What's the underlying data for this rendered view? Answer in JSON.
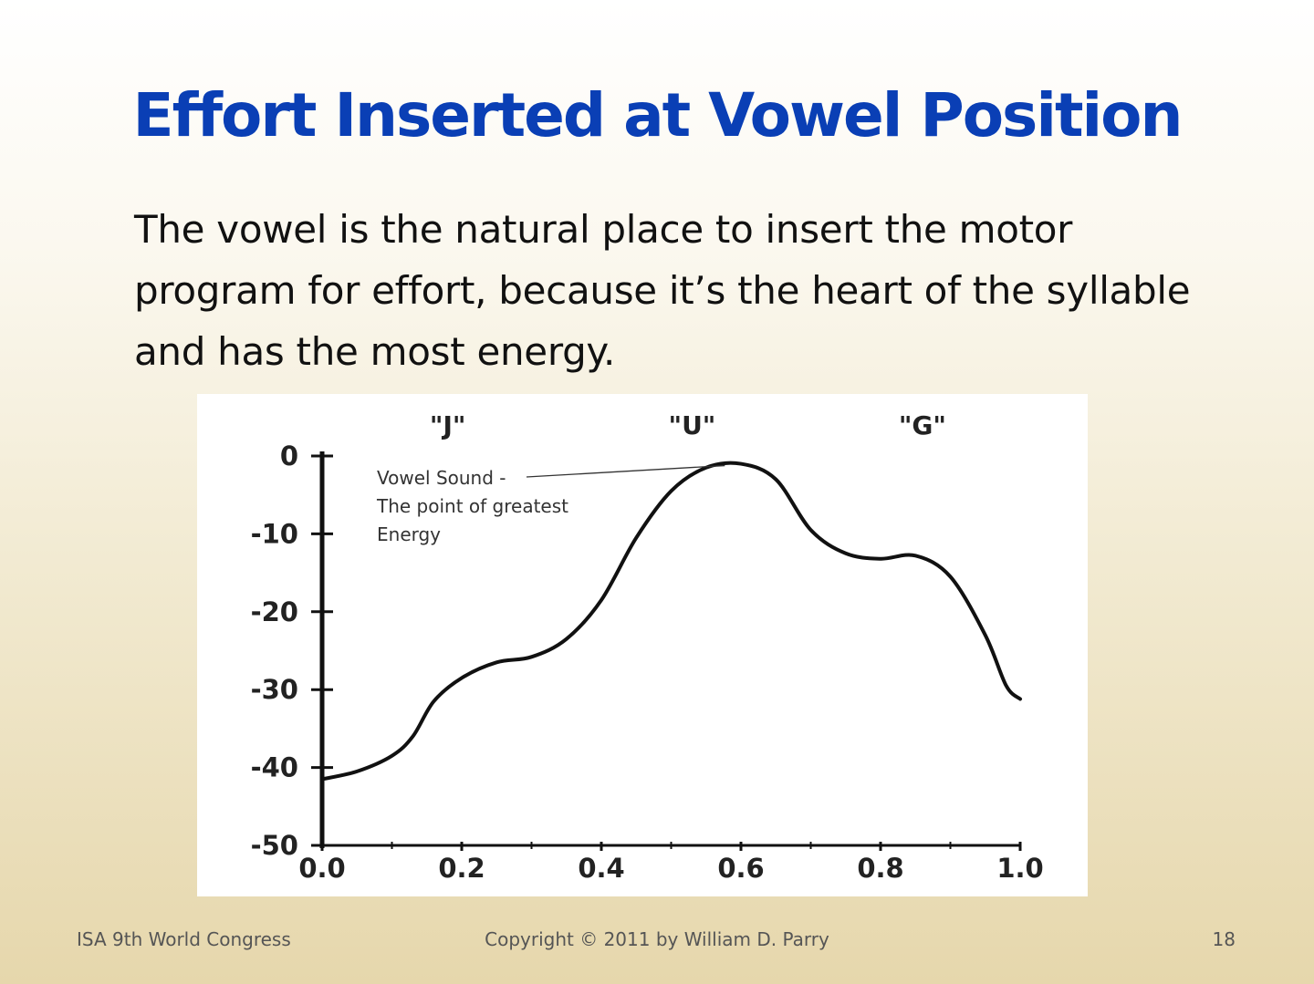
{
  "slide": {
    "title": "Effort Inserted at Vowel Position",
    "body": "The vowel is the natural place to insert the motor program for effort, because it’s the heart of the syllable and has the most energy."
  },
  "footer": {
    "left": "ISA 9th World Congress",
    "center": "Copyright © 2011 by William D. Parry",
    "right": "18"
  },
  "colors": {
    "title": "#0a3fb5",
    "curve": "#111111"
  },
  "chart_data": {
    "type": "line",
    "title": "",
    "xlabel": "",
    "ylabel": "",
    "xlim": [
      0.0,
      1.0
    ],
    "ylim": [
      -50,
      0
    ],
    "x_ticks": [
      "0.0",
      "0.2",
      "0.4",
      "0.6",
      "0.8",
      "1.0"
    ],
    "y_ticks": [
      "0",
      "-10",
      "-20",
      "-30",
      "-40",
      "-50"
    ],
    "category_labels": [
      {
        "text": "\"J\"",
        "x": 0.18
      },
      {
        "text": "\"U\"",
        "x": 0.53
      },
      {
        "text": "\"G\"",
        "x": 0.86
      }
    ],
    "annotation": {
      "lines": [
        "Vowel Sound -",
        "The point of greatest",
        "Energy"
      ],
      "points_to": {
        "x": 0.59,
        "y": -1
      }
    },
    "grid": false,
    "series": [
      {
        "x": [
          0.0,
          0.05,
          0.1,
          0.13,
          0.16,
          0.2,
          0.25,
          0.3,
          0.35,
          0.4,
          0.45,
          0.5,
          0.55,
          0.6,
          0.65,
          0.7,
          0.75,
          0.8,
          0.85,
          0.9,
          0.95,
          0.98,
          1.0
        ],
        "y": [
          -41.5,
          -40.5,
          -38.5,
          -36,
          -31.5,
          -28.5,
          -26.5,
          -25.8,
          -23.5,
          -18.5,
          -10.5,
          -4.5,
          -1.5,
          -1.0,
          -3.0,
          -9.5,
          -12.5,
          -13.2,
          -12.8,
          -15.5,
          -23.0,
          -29.5,
          -31.2
        ]
      }
    ]
  }
}
